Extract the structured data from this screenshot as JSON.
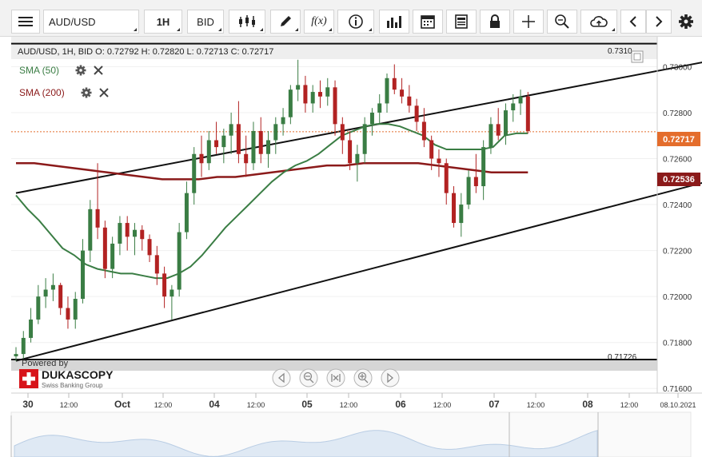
{
  "toolbar": {
    "menu_icon": "hamburger-menu-icon",
    "instrument": "AUD/USD",
    "timeframe": "1H",
    "side": "BID",
    "buttons": [
      {
        "name": "candle-style-icon"
      },
      {
        "name": "draw-pen-icon"
      },
      {
        "name": "function-fx-icon"
      },
      {
        "name": "info-icon"
      },
      {
        "name": "bar-indicators-icon"
      },
      {
        "name": "calendar-icon"
      },
      {
        "name": "report-icon"
      },
      {
        "name": "lock-icon"
      },
      {
        "name": "crosshair-icon"
      },
      {
        "name": "zoom-icon"
      },
      {
        "name": "cloud-upload-icon"
      },
      {
        "name": "scroll-left-icon"
      },
      {
        "name": "scroll-right-icon"
      },
      {
        "name": "settings-gear-icon"
      }
    ],
    "fx_label": "f(x)"
  },
  "chart": {
    "ohlc_label": "AUD/USD, 1H, BID   O: 0.72792 H: 0.72820 L: 0.72713 C: 0.72717",
    "indicators": [
      {
        "label": "SMA (50)",
        "color": "#3a7d44"
      },
      {
        "label": "SMA (200)",
        "color": "#8b1a1a"
      }
    ],
    "level_high": "0.7310",
    "level_low": "0.71726",
    "current_price": "0.72717",
    "sma200_price": "0.72536",
    "branding_powered": "Powered by",
    "branding_name": "DUKASCOPY",
    "branding_tag": "Swiss Banking Group",
    "date_end": "08.10.2021"
  },
  "chart_data": {
    "type": "candlestick",
    "symbol": "AUD/USD",
    "timeframe": "1H",
    "y_ticks": [
      "0.73000",
      "0.72800",
      "0.72600",
      "0.72400",
      "0.72200",
      "0.72000",
      "0.71800",
      "0.71600"
    ],
    "ylim": [
      0.7158,
      0.7313
    ],
    "x_ticks": [
      "30",
      "12:00",
      "Oct",
      "12:00",
      "04",
      "12:00",
      "05",
      "12:00",
      "06",
      "12:00",
      "07",
      "12:00",
      "08",
      "12:00",
      "08.10.2021"
    ],
    "horizontal_levels": [
      0.731,
      0.71726
    ],
    "current_price": 0.72717,
    "channel": {
      "upper": {
        "from": {
          "bar": 0,
          "price": 0.7245
        },
        "to": {
          "bar": 122,
          "price": 0.732
        }
      },
      "lower": {
        "from": {
          "bar": 0,
          "price": 0.7172
        },
        "to": {
          "bar": 129,
          "price": 0.728
        }
      }
    },
    "sma50": [
      0.7244,
      0.7238,
      0.7233,
      0.7227,
      0.7221,
      0.7218,
      0.7214,
      0.7212,
      0.7211,
      0.721,
      0.721,
      0.7209,
      0.7208,
      0.7208,
      0.721,
      0.7213,
      0.7218,
      0.7224,
      0.723,
      0.7235,
      0.724,
      0.7245,
      0.725,
      0.7254,
      0.7257,
      0.7259,
      0.7262,
      0.7266,
      0.727,
      0.7272,
      0.7274,
      0.7275,
      0.7275,
      0.7274,
      0.7272,
      0.727,
      0.7266,
      0.7264,
      0.7264,
      0.7264,
      0.7264,
      0.7265,
      0.727,
      0.7271,
      0.7271
    ],
    "sma200": [
      0.7258,
      0.7258,
      0.7257,
      0.7256,
      0.7255,
      0.7254,
      0.7253,
      0.7252,
      0.7251,
      0.7251,
      0.7251,
      0.7252,
      0.7252,
      0.7253,
      0.7254,
      0.7255,
      0.7256,
      0.7257,
      0.7257,
      0.7258,
      0.7258,
      0.7258,
      0.7258,
      0.7257,
      0.7256,
      0.7255,
      0.7254,
      0.7254,
      0.7254
    ],
    "candles": [
      [
        0.7174,
        0.7178,
        0.7172,
        0.7175
      ],
      [
        0.7175,
        0.7185,
        0.7173,
        0.7182
      ],
      [
        0.7182,
        0.7195,
        0.718,
        0.719
      ],
      [
        0.719,
        0.7205,
        0.7188,
        0.72
      ],
      [
        0.72,
        0.7208,
        0.7195,
        0.7203
      ],
      [
        0.7203,
        0.721,
        0.7198,
        0.7205
      ],
      [
        0.7205,
        0.7206,
        0.7192,
        0.7195
      ],
      [
        0.7195,
        0.72,
        0.7186,
        0.719
      ],
      [
        0.719,
        0.7202,
        0.7186,
        0.7199
      ],
      [
        0.7199,
        0.7225,
        0.7197,
        0.722
      ],
      [
        0.722,
        0.7242,
        0.7215,
        0.7238
      ],
      [
        0.7238,
        0.7258,
        0.7225,
        0.723
      ],
      [
        0.723,
        0.7233,
        0.7208,
        0.7212
      ],
      [
        0.7212,
        0.7226,
        0.7208,
        0.7223
      ],
      [
        0.7223,
        0.7235,
        0.7218,
        0.7232
      ],
      [
        0.7232,
        0.7235,
        0.722,
        0.7226
      ],
      [
        0.7226,
        0.7232,
        0.7218,
        0.7229
      ],
      [
        0.7229,
        0.7231,
        0.722,
        0.7225
      ],
      [
        0.7225,
        0.7227,
        0.7215,
        0.7218
      ],
      [
        0.7218,
        0.7222,
        0.7205,
        0.721
      ],
      [
        0.721,
        0.7213,
        0.7195,
        0.72
      ],
      [
        0.72,
        0.7205,
        0.719,
        0.7203
      ],
      [
        0.7203,
        0.7232,
        0.72,
        0.7228
      ],
      [
        0.7228,
        0.725,
        0.7225,
        0.7245
      ],
      [
        0.7245,
        0.7265,
        0.724,
        0.7262
      ],
      [
        0.7262,
        0.727,
        0.7252,
        0.7258
      ],
      [
        0.7258,
        0.7272,
        0.7255,
        0.7268
      ],
      [
        0.7268,
        0.7276,
        0.7262,
        0.7265
      ],
      [
        0.7265,
        0.7273,
        0.7258,
        0.727
      ],
      [
        0.727,
        0.728,
        0.7262,
        0.7275
      ],
      [
        0.7275,
        0.7285,
        0.7258,
        0.7262
      ],
      [
        0.7262,
        0.727,
        0.7252,
        0.7258
      ],
      [
        0.7258,
        0.7276,
        0.7255,
        0.7272
      ],
      [
        0.7272,
        0.7278,
        0.7258,
        0.7262
      ],
      [
        0.7262,
        0.7272,
        0.7256,
        0.7268
      ],
      [
        0.7268,
        0.7278,
        0.7262,
        0.7275
      ],
      [
        0.7275,
        0.7282,
        0.727,
        0.7278
      ],
      [
        0.7278,
        0.7292,
        0.7275,
        0.729
      ],
      [
        0.729,
        0.7303,
        0.7285,
        0.7292
      ],
      [
        0.7292,
        0.7296,
        0.728,
        0.7284
      ],
      [
        0.7284,
        0.7292,
        0.728,
        0.7289
      ],
      [
        0.7289,
        0.7294,
        0.7282,
        0.7287
      ],
      [
        0.7287,
        0.7295,
        0.7283,
        0.7291
      ],
      [
        0.7291,
        0.7294,
        0.727,
        0.7275
      ],
      [
        0.7275,
        0.7278,
        0.7262,
        0.7268
      ],
      [
        0.7268,
        0.7272,
        0.7255,
        0.7258
      ],
      [
        0.7258,
        0.7266,
        0.725,
        0.7262
      ],
      [
        0.7262,
        0.7278,
        0.7258,
        0.7275
      ],
      [
        0.7275,
        0.7282,
        0.727,
        0.728
      ],
      [
        0.728,
        0.7288,
        0.7275,
        0.7284
      ],
      [
        0.7284,
        0.7297,
        0.728,
        0.7295
      ],
      [
        0.7295,
        0.7301,
        0.7288,
        0.729
      ],
      [
        0.729,
        0.7295,
        0.7284,
        0.7287
      ],
      [
        0.7287,
        0.7292,
        0.728,
        0.7283
      ],
      [
        0.7283,
        0.7286,
        0.7272,
        0.7276
      ],
      [
        0.7276,
        0.7282,
        0.7265,
        0.7268
      ],
      [
        0.7268,
        0.727,
        0.7255,
        0.726
      ],
      [
        0.726,
        0.7264,
        0.7252,
        0.7258
      ],
      [
        0.7258,
        0.726,
        0.724,
        0.7245
      ],
      [
        0.7245,
        0.7248,
        0.723,
        0.7232
      ],
      [
        0.7232,
        0.7245,
        0.7226,
        0.724
      ],
      [
        0.724,
        0.7255,
        0.7238,
        0.7252
      ],
      [
        0.7252,
        0.7262,
        0.7245,
        0.7248
      ],
      [
        0.7248,
        0.7268,
        0.7242,
        0.7265
      ],
      [
        0.7265,
        0.7278,
        0.7262,
        0.7275
      ],
      [
        0.7275,
        0.7282,
        0.7268,
        0.727
      ],
      [
        0.727,
        0.7284,
        0.7266,
        0.7281
      ],
      [
        0.7281,
        0.7288,
        0.7276,
        0.7284
      ],
      [
        0.7284,
        0.729,
        0.7279,
        0.7287
      ],
      [
        0.7287,
        0.7289,
        0.7271,
        0.7272
      ]
    ]
  },
  "navigator": {
    "buttons": [
      {
        "name": "nav-first-icon"
      },
      {
        "name": "nav-zoom-out-icon"
      },
      {
        "name": "nav-fit-icon"
      },
      {
        "name": "nav-zoom-in-icon"
      },
      {
        "name": "nav-last-icon"
      }
    ]
  }
}
